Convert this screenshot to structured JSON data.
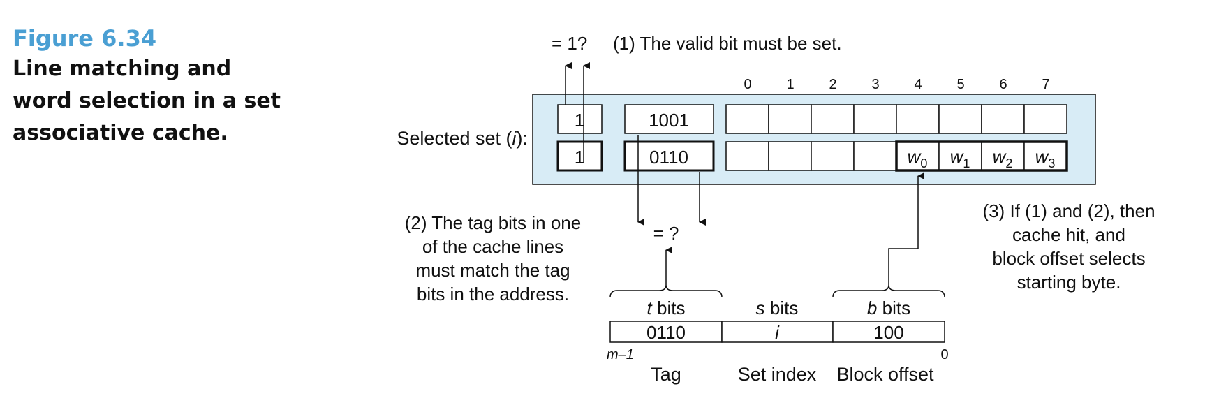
{
  "caption": {
    "figure_number": "Figure 6.34",
    "title_lines": [
      "Line matching and",
      "word selection in a set",
      "associative cache."
    ]
  },
  "selected_set": {
    "label_prefix": "Selected set (",
    "label_var": "i",
    "label_suffix": "):",
    "column_indices": [
      "0",
      "1",
      "2",
      "3",
      "4",
      "5",
      "6",
      "7"
    ],
    "lines": [
      {
        "valid": "1",
        "tag": "1001"
      },
      {
        "valid": "1",
        "tag": "0110",
        "words": [
          {
            "base": "w",
            "sub": "0"
          },
          {
            "base": "w",
            "sub": "1"
          },
          {
            "base": "w",
            "sub": "2"
          },
          {
            "base": "w",
            "sub": "3"
          }
        ]
      }
    ]
  },
  "annotations": {
    "valid_check": "= 1?",
    "step1": "(1) The valid bit must be set.",
    "tag_check": "= ?",
    "step2_lines": [
      "(2) The tag bits in one",
      "of the cache lines",
      "must match the tag",
      "bits in the address."
    ],
    "step3_lines": [
      "(3) If (1) and (2), then",
      "cache hit, and",
      "block offset selects",
      "starting byte."
    ]
  },
  "address": {
    "fields": [
      {
        "var": "t",
        "suffix": " bits",
        "value": "0110",
        "value_italic": false,
        "name": "Tag"
      },
      {
        "var": "s",
        "suffix": " bits",
        "value": "i",
        "value_italic": true,
        "name": "Set index"
      },
      {
        "var": "b",
        "suffix": " bits",
        "value": "100",
        "value_italic": false,
        "name": "Block offset"
      }
    ],
    "msb_label": "m–1",
    "lsb_label": "0"
  },
  "colors": {
    "set_background": "#d8ecf6",
    "caption_accent": "#4a9fd3"
  }
}
